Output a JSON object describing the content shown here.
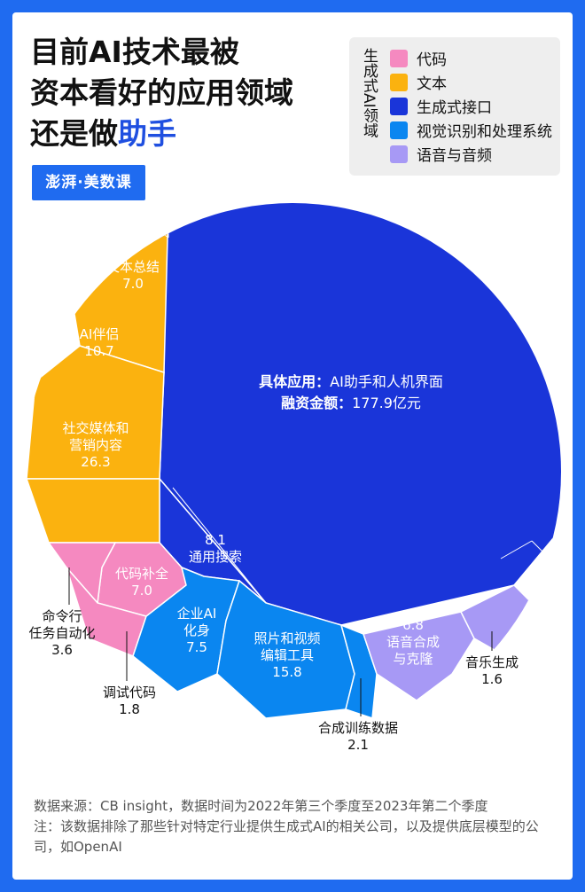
{
  "title": {
    "line1": "目前AI技术最被",
    "line2": "资本看好的应用领域",
    "line3_prefix": "还是做",
    "line3_highlight": "助手"
  },
  "logo": "澎湃·美数课",
  "legend": {
    "title": "生成式AI领域",
    "items": [
      {
        "label": "代码",
        "color": "#f589c0"
      },
      {
        "label": "文本",
        "color": "#fbb20f"
      },
      {
        "label": "生成式接口",
        "color": "#1a35d9"
      },
      {
        "label": "视觉识别和处理系统",
        "color": "#0a86f0"
      },
      {
        "label": "语音与音频",
        "color": "#a799f5"
      }
    ]
  },
  "chart_data": {
    "type": "pie",
    "subtype": "voronoi-treemap",
    "title": "目前AI技术最被资本看好的应用领域还是做助手",
    "unit": "亿元",
    "callout": {
      "label_1": "具体应用：",
      "value_1": "AI助手和人机界面",
      "label_2": "融资金额：",
      "value_2": "177.9亿元"
    },
    "segments": [
      {
        "category": "生成式接口",
        "name": "AI助手和人机界面",
        "value": 177.9,
        "color": "#1a35d9"
      },
      {
        "category": "生成式接口",
        "name": "通用搜索",
        "value": 8.1,
        "color": "#1a35d9"
      },
      {
        "category": "文本",
        "name": "社交媒体和营销内容",
        "value": 26.3,
        "color": "#fbb20f"
      },
      {
        "category": "文本",
        "name": "AI伴侣",
        "value": 10.7,
        "color": "#fbb20f"
      },
      {
        "category": "文本",
        "name": "文本总结",
        "value": 7.0,
        "color": "#fbb20f"
      },
      {
        "category": "代码",
        "name": "代码补全",
        "value": 7.0,
        "color": "#f589c0"
      },
      {
        "category": "代码",
        "name": "命令行任务自动化",
        "value": 3.6,
        "color": "#f589c0"
      },
      {
        "category": "代码",
        "name": "调试代码",
        "value": 1.8,
        "color": "#f589c0"
      },
      {
        "category": "视觉识别和处理系统",
        "name": "企业AI化身",
        "value": 7.5,
        "color": "#0a86f0"
      },
      {
        "category": "视觉识别和处理系统",
        "name": "照片和视频编辑工具",
        "value": 15.8,
        "color": "#0a86f0"
      },
      {
        "category": "视觉识别和处理系统",
        "name": "合成训练数据",
        "value": 2.1,
        "color": "#0a86f0"
      },
      {
        "category": "语音与音频",
        "name": "语音合成与克隆",
        "value": 6.8,
        "color": "#a799f5"
      },
      {
        "category": "语音与音频",
        "name": "音乐生成",
        "value": 1.6,
        "color": "#a799f5"
      }
    ],
    "cell_labels": {
      "文本总结": [
        "文本总结",
        "7.0"
      ],
      "AI伴侣": [
        "AI伴侣",
        "10.7"
      ],
      "社交媒体和营销内容": [
        "社交媒体和",
        "营销内容",
        "26.3"
      ],
      "通用搜索": [
        "8.1",
        "通用搜索"
      ],
      "代码补全": [
        "代码补全",
        "7.0"
      ],
      "企业AI化身": [
        "企业AI",
        "化身",
        "7.5"
      ],
      "照片和视频编辑工具": [
        "照片和视频",
        "编辑工具",
        "15.8"
      ],
      "语音合成与克隆": [
        "6.8",
        "语音合成",
        "与克隆"
      ]
    },
    "outside_labels": {
      "命令行任务自动化": [
        "命令行",
        "任务自动化",
        "3.6"
      ],
      "调试代码": [
        "调试代码",
        "1.8"
      ],
      "合成训练数据": [
        "合成训练数据",
        "2.1"
      ],
      "音乐生成": [
        "音乐生成",
        "1.6"
      ]
    }
  },
  "notes": {
    "line1": "数据来源：CB insight，数据时间为2022年第三个季度至2023年第二个季度",
    "line2": "注：该数据排除了那些针对特定行业提供生成式AI的相关公司，以及提供底层模型的公司，如OpenAI"
  }
}
